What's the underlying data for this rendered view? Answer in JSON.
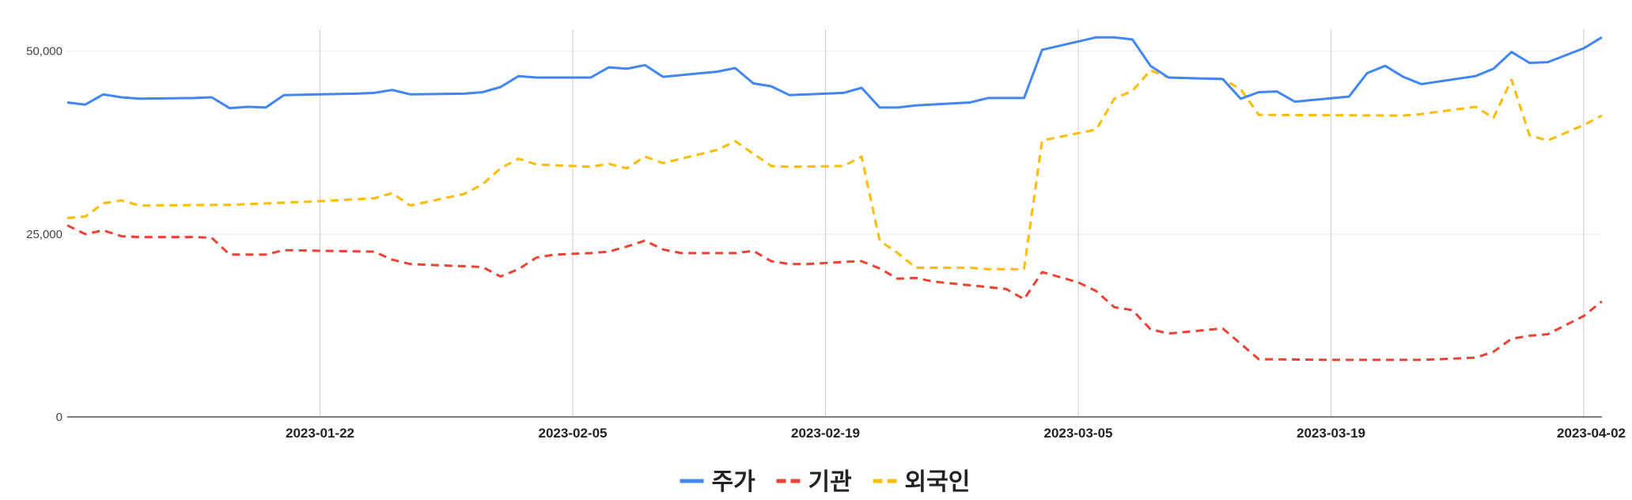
{
  "chart_data": {
    "type": "line",
    "title": "",
    "xlabel": "",
    "ylabel": "",
    "x_range": [
      "2023-01-08",
      "2023-04-02"
    ],
    "ylim": [
      0,
      53000
    ],
    "y_ticks": [
      {
        "value": 0,
        "label": "0"
      },
      {
        "value": 25000,
        "label": "25,000"
      },
      {
        "value": 50000,
        "label": "50,000"
      }
    ],
    "x_ticks": [
      "2023-01-22",
      "2023-02-05",
      "2023-02-19",
      "2023-03-05",
      "2023-03-19",
      "2023-04-02"
    ],
    "grid": true,
    "legend_position": "bottom",
    "series": [
      {
        "name": "주가",
        "color": "#4285F4",
        "style": "solid",
        "points": [
          [
            "2023-01-08",
            43000
          ],
          [
            "2023-01-09",
            42700
          ],
          [
            "2023-01-10",
            44100
          ],
          [
            "2023-01-11",
            43700
          ],
          [
            "2023-01-12",
            43500
          ],
          [
            "2023-01-15",
            43600
          ],
          [
            "2023-01-16",
            43700
          ],
          [
            "2023-01-17",
            42200
          ],
          [
            "2023-01-18",
            42400
          ],
          [
            "2023-01-19",
            42300
          ],
          [
            "2023-01-20",
            44000
          ],
          [
            "2023-01-22",
            44100
          ],
          [
            "2023-01-24",
            44200
          ],
          [
            "2023-01-25",
            44300
          ],
          [
            "2023-01-26",
            44700
          ],
          [
            "2023-01-27",
            44100
          ],
          [
            "2023-01-30",
            44200
          ],
          [
            "2023-01-31",
            44400
          ],
          [
            "2023-02-01",
            45100
          ],
          [
            "2023-02-02",
            46600
          ],
          [
            "2023-02-03",
            46400
          ],
          [
            "2023-02-06",
            46400
          ],
          [
            "2023-02-07",
            47800
          ],
          [
            "2023-02-08",
            47600
          ],
          [
            "2023-02-09",
            48100
          ],
          [
            "2023-02-10",
            46500
          ],
          [
            "2023-02-13",
            47200
          ],
          [
            "2023-02-14",
            47700
          ],
          [
            "2023-02-15",
            45600
          ],
          [
            "2023-02-16",
            45200
          ],
          [
            "2023-02-17",
            44000
          ],
          [
            "2023-02-20",
            44300
          ],
          [
            "2023-02-21",
            45000
          ],
          [
            "2023-02-22",
            42300
          ],
          [
            "2023-02-23",
            42300
          ],
          [
            "2023-02-24",
            42600
          ],
          [
            "2023-02-27",
            43000
          ],
          [
            "2023-02-28",
            43600
          ],
          [
            "2023-03-02",
            43600
          ],
          [
            "2023-03-03",
            50200
          ],
          [
            "2023-03-06",
            51900
          ],
          [
            "2023-03-07",
            51900
          ],
          [
            "2023-03-08",
            51600
          ],
          [
            "2023-03-09",
            48000
          ],
          [
            "2023-03-10",
            46400
          ],
          [
            "2023-03-13",
            46200
          ],
          [
            "2023-03-14",
            43500
          ],
          [
            "2023-03-15",
            44400
          ],
          [
            "2023-03-16",
            44500
          ],
          [
            "2023-03-17",
            43100
          ],
          [
            "2023-03-20",
            43800
          ],
          [
            "2023-03-21",
            47000
          ],
          [
            "2023-03-22",
            48000
          ],
          [
            "2023-03-23",
            46500
          ],
          [
            "2023-03-24",
            45500
          ],
          [
            "2023-03-27",
            46600
          ],
          [
            "2023-03-28",
            47600
          ],
          [
            "2023-03-29",
            49900
          ],
          [
            "2023-03-30",
            48400
          ],
          [
            "2023-03-31",
            48500
          ],
          [
            "2023-04-02",
            50400
          ],
          [
            "2023-04-03",
            51900
          ]
        ]
      },
      {
        "name": "기관",
        "color": "#EA4335",
        "style": "dashed",
        "points": [
          [
            "2023-01-08",
            26200
          ],
          [
            "2023-01-09",
            25000
          ],
          [
            "2023-01-10",
            25500
          ],
          [
            "2023-01-11",
            24700
          ],
          [
            "2023-01-12",
            24600
          ],
          [
            "2023-01-15",
            24600
          ],
          [
            "2023-01-16",
            24500
          ],
          [
            "2023-01-17",
            22200
          ],
          [
            "2023-01-19",
            22200
          ],
          [
            "2023-01-20",
            22800
          ],
          [
            "2023-01-25",
            22600
          ],
          [
            "2023-01-26",
            21500
          ],
          [
            "2023-01-27",
            20900
          ],
          [
            "2023-01-31",
            20500
          ],
          [
            "2023-02-01",
            19200
          ],
          [
            "2023-02-02",
            20200
          ],
          [
            "2023-02-03",
            21800
          ],
          [
            "2023-02-04",
            22200
          ],
          [
            "2023-02-06",
            22400
          ],
          [
            "2023-02-07",
            22600
          ],
          [
            "2023-02-08",
            23300
          ],
          [
            "2023-02-09",
            24100
          ],
          [
            "2023-02-10",
            22900
          ],
          [
            "2023-02-11",
            22400
          ],
          [
            "2023-02-14",
            22400
          ],
          [
            "2023-02-15",
            22700
          ],
          [
            "2023-02-16",
            21300
          ],
          [
            "2023-02-17",
            20900
          ],
          [
            "2023-02-18",
            20900
          ],
          [
            "2023-02-20",
            21200
          ],
          [
            "2023-02-21",
            21300
          ],
          [
            "2023-02-22",
            20300
          ],
          [
            "2023-02-23",
            18900
          ],
          [
            "2023-02-24",
            19000
          ],
          [
            "2023-02-25",
            18500
          ],
          [
            "2023-03-01",
            17500
          ],
          [
            "2023-03-02",
            16100
          ],
          [
            "2023-03-03",
            19800
          ],
          [
            "2023-03-05",
            18400
          ],
          [
            "2023-03-06",
            17200
          ],
          [
            "2023-03-07",
            15000
          ],
          [
            "2023-03-08",
            14600
          ],
          [
            "2023-03-09",
            12000
          ],
          [
            "2023-03-10",
            11400
          ],
          [
            "2023-03-13",
            12100
          ],
          [
            "2023-03-14",
            10000
          ],
          [
            "2023-03-15",
            7900
          ],
          [
            "2023-03-19",
            7800
          ],
          [
            "2023-03-24",
            7800
          ],
          [
            "2023-03-27",
            8100
          ],
          [
            "2023-03-28",
            8900
          ],
          [
            "2023-03-29",
            10700
          ],
          [
            "2023-03-30",
            11100
          ],
          [
            "2023-03-31",
            11300
          ],
          [
            "2023-04-02",
            13800
          ],
          [
            "2023-04-03",
            15800
          ]
        ]
      },
      {
        "name": "외국인",
        "color": "#FBBC04",
        "style": "dashed",
        "points": [
          [
            "2023-01-08",
            27200
          ],
          [
            "2023-01-09",
            27400
          ],
          [
            "2023-01-10",
            29200
          ],
          [
            "2023-01-11",
            29600
          ],
          [
            "2023-01-12",
            28900
          ],
          [
            "2023-01-17",
            29000
          ],
          [
            "2023-01-22",
            29500
          ],
          [
            "2023-01-25",
            29900
          ],
          [
            "2023-01-26",
            30600
          ],
          [
            "2023-01-27",
            28900
          ],
          [
            "2023-01-30",
            30500
          ],
          [
            "2023-01-31",
            31800
          ],
          [
            "2023-02-01",
            34000
          ],
          [
            "2023-02-02",
            35300
          ],
          [
            "2023-02-03",
            34500
          ],
          [
            "2023-02-06",
            34200
          ],
          [
            "2023-02-07",
            34600
          ],
          [
            "2023-02-08",
            34000
          ],
          [
            "2023-02-09",
            35600
          ],
          [
            "2023-02-10",
            34700
          ],
          [
            "2023-02-13",
            36500
          ],
          [
            "2023-02-14",
            37700
          ],
          [
            "2023-02-15",
            36000
          ],
          [
            "2023-02-16",
            34300
          ],
          [
            "2023-02-17",
            34200
          ],
          [
            "2023-02-20",
            34300
          ],
          [
            "2023-02-21",
            35600
          ],
          [
            "2023-02-22",
            24100
          ],
          [
            "2023-02-23",
            22400
          ],
          [
            "2023-02-24",
            20400
          ],
          [
            "2023-02-27",
            20400
          ],
          [
            "2023-02-28",
            20200
          ],
          [
            "2023-03-02",
            20200
          ],
          [
            "2023-03-03",
            37800
          ],
          [
            "2023-03-06",
            39300
          ],
          [
            "2023-03-07",
            43500
          ],
          [
            "2023-03-08",
            44600
          ],
          [
            "2023-03-09",
            47400
          ],
          [
            "2023-03-10",
            46400
          ],
          [
            "2023-03-13",
            46200
          ],
          [
            "2023-03-14",
            44800
          ],
          [
            "2023-03-15",
            41300
          ],
          [
            "2023-03-23",
            41200
          ],
          [
            "2023-03-24",
            41400
          ],
          [
            "2023-03-27",
            42400
          ],
          [
            "2023-03-28",
            40900
          ],
          [
            "2023-03-29",
            46100
          ],
          [
            "2023-03-30",
            38500
          ],
          [
            "2023-03-31",
            37800
          ],
          [
            "2023-04-02",
            39900
          ],
          [
            "2023-04-03",
            41200
          ]
        ]
      }
    ]
  },
  "legend": [
    {
      "label": "주가",
      "color": "#4285F4",
      "style": "solid"
    },
    {
      "label": "기관",
      "color": "#EA4335",
      "style": "dashed"
    },
    {
      "label": "외국인",
      "color": "#FBBC04",
      "style": "dashed"
    }
  ]
}
